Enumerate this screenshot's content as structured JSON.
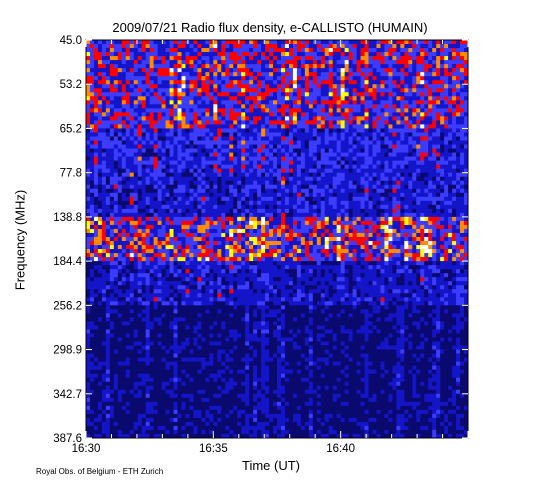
{
  "chart_data": {
    "type": "heatmap",
    "title": "2009/07/21  Radio flux density, e-CALLISTO (HUMAIN)",
    "xlabel": "Time (UT)",
    "ylabel": "Frequency (MHz)",
    "x_ticks": [
      "16:30",
      "16:35",
      "16:40"
    ],
    "y_ticks": [
      "45.0",
      "53.2",
      "65.2",
      "77.8",
      "138.8",
      "184.4",
      "256.2",
      "298.9",
      "342.7",
      "387.6"
    ],
    "x_range": [
      "16:30",
      "16:45"
    ],
    "y_range": [
      45.0,
      387.6
    ],
    "colormap": [
      "#000000",
      "#0a0a6e",
      "#1414c8",
      "#3c3cff",
      "#ff0000",
      "#ff8c00",
      "#ffff00",
      "#ffffff"
    ],
    "intensity_bands": [
      {
        "freq_from": "45.0",
        "freq_to": "65.2",
        "level": 0.7
      },
      {
        "freq_from": "65.2",
        "freq_to": "77.8",
        "level": 0.55
      },
      {
        "freq_from": "77.8",
        "freq_to": "138.8",
        "level": 0.5
      },
      {
        "freq_from": "138.8",
        "freq_to": "184.4",
        "level": 0.75
      },
      {
        "freq_from": "184.4",
        "freq_to": "256.2",
        "level": 0.45
      },
      {
        "freq_from": "256.2",
        "freq_to": "387.6",
        "level": 0.3
      }
    ]
  },
  "credit": "Royal Obs. of Belgium - ETH Zurich"
}
